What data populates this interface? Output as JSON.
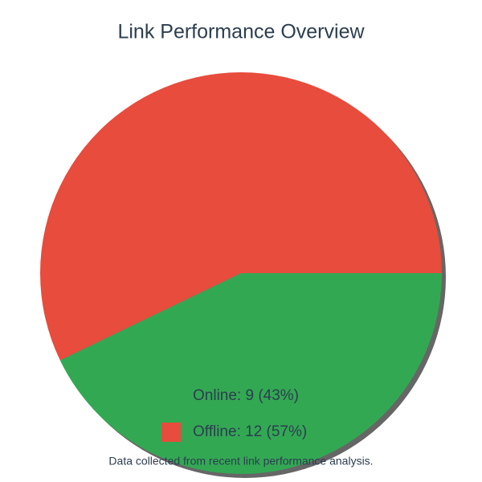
{
  "chart_data": {
    "type": "pie",
    "title": "Link Performance Overview",
    "categories": [
      "Online",
      "Offline"
    ],
    "values": [
      9,
      12
    ],
    "colors": [
      "#33a853",
      "#e74c3c"
    ],
    "legend_labels": [
      "Online: 9 (43%)",
      "Offline: 12 (57%)"
    ],
    "footnote": "Data collected from recent link performance analysis."
  }
}
